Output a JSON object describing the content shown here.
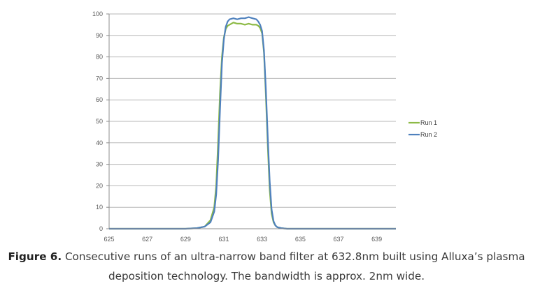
{
  "chart_data": {
    "type": "line",
    "xlim": [
      625,
      640
    ],
    "ylim": [
      0,
      100
    ],
    "x_ticks": [
      "625",
      "627",
      "629",
      "631",
      "633",
      "635",
      "637",
      "639"
    ],
    "y_ticks": [
      "0",
      "10",
      "20",
      "30",
      "40",
      "50",
      "60",
      "70",
      "80",
      "90",
      "100"
    ],
    "grid": true,
    "legend_position": "right",
    "series": [
      {
        "name": "Run 1",
        "color": "#8dba46",
        "x": [
          625,
          629,
          629.6,
          630.0,
          630.3,
          630.5,
          630.6,
          630.7,
          630.8,
          630.9,
          631.0,
          631.1,
          631.2,
          631.3,
          631.5,
          631.7,
          631.9,
          632.1,
          632.3,
          632.5,
          632.7,
          632.8,
          632.9,
          633.0,
          633.1,
          633.2,
          633.3,
          633.4,
          633.5,
          633.6,
          633.7,
          633.8,
          634.0,
          634.3,
          640
        ],
        "y": [
          0,
          0,
          0.3,
          1,
          4,
          10,
          20,
          40,
          63,
          80,
          89,
          93,
          94.5,
          95,
          96,
          95.5,
          95.5,
          95,
          95.5,
          95,
          95,
          94.5,
          93.5,
          91,
          82,
          62,
          38,
          18,
          7,
          3,
          1.5,
          0.7,
          0.3,
          0,
          0
        ]
      },
      {
        "name": "Run 2",
        "color": "#4f81bd",
        "x": [
          625,
          629,
          629.6,
          630.0,
          630.3,
          630.5,
          630.6,
          630.7,
          630.8,
          630.9,
          631.0,
          631.1,
          631.2,
          631.3,
          631.5,
          631.7,
          631.9,
          632.1,
          632.3,
          632.5,
          632.7,
          632.8,
          632.9,
          633.0,
          633.1,
          633.2,
          633.3,
          633.4,
          633.5,
          633.6,
          633.7,
          633.8,
          634.0,
          634.3,
          640
        ],
        "y": [
          0,
          0,
          0.3,
          1,
          3,
          8,
          16,
          32,
          55,
          77,
          88,
          94,
          96.5,
          97.5,
          98,
          97.5,
          98,
          98,
          98.5,
          98,
          97.5,
          96.5,
          95,
          92,
          83,
          65,
          42,
          22,
          9,
          3.5,
          1.5,
          0.7,
          0.3,
          0,
          0
        ]
      }
    ]
  },
  "caption": {
    "bold": "Figure 6.",
    "text": " Consecutive runs of an ultra-narrow band filter at 632.8nm built using Alluxa’s plasma deposition technology. The bandwidth is approx. 2nm wide."
  }
}
